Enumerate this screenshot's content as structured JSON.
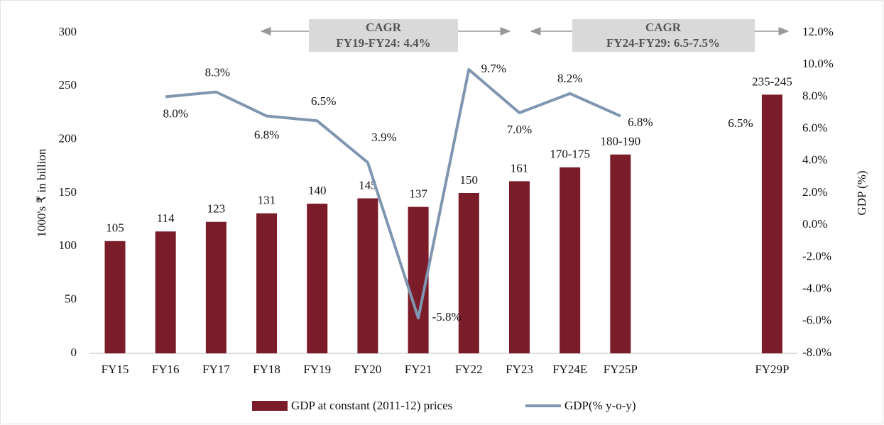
{
  "chart_data": {
    "type": "bar_line",
    "categories": [
      "FY15",
      "FY16",
      "FY17",
      "FY18",
      "FY19",
      "FY20",
      "FY21",
      "FY22",
      "FY23",
      "FY24E",
      "FY25P",
      null,
      null,
      "FY29P"
    ],
    "series": [
      {
        "name": "GDP at constant (2011-12) prices",
        "type": "bar",
        "color": "#7b1c2a",
        "values": [
          105,
          114,
          123,
          131,
          140,
          145,
          137,
          150,
          161,
          174,
          186,
          null,
          null,
          242
        ],
        "value_labels": [
          null,
          null,
          null,
          null,
          null,
          null,
          null,
          null,
          null,
          "170-175",
          "180-190",
          null,
          null,
          "235-245"
        ]
      },
      {
        "name": "GDP(% y-o-y)",
        "type": "line",
        "axis": "y2",
        "color": "#8096b0",
        "values": [
          null,
          8.0,
          8.3,
          6.8,
          6.5,
          3.9,
          -5.8,
          9.7,
          7.0,
          8.2,
          6.8,
          null,
          null,
          null
        ],
        "value_labels": [
          null,
          "8.0%",
          "8.3%",
          "6.8%",
          "6.5%",
          "3.9%",
          "-5.8%",
          "9.7%",
          "7.0%",
          "8.2%",
          "6.8%",
          null,
          null,
          null
        ]
      }
    ],
    "ylabel": "1000's ₹ in billion",
    "y2label": "GDP (%)",
    "ylim": [
      0,
      300
    ],
    "yticks": [
      0,
      50,
      100,
      150,
      200,
      250,
      300
    ],
    "y2lim": [
      -8,
      12
    ],
    "y2ticks": [
      {
        "value": -8,
        "label": "-8.0%"
      },
      {
        "value": -6,
        "label": "-6.0%"
      },
      {
        "value": -4,
        "label": "-4.0%"
      },
      {
        "value": -2,
        "label": "-2.0%"
      },
      {
        "value": 0,
        "label": "0.0%"
      },
      {
        "value": 2,
        "label": "2.0%"
      },
      {
        "value": 4,
        "label": "4.0%"
      },
      {
        "value": 6,
        "label": "6.0%"
      },
      {
        "value": 8,
        "label": "8.0%"
      },
      {
        "value": 10,
        "label": "10.0%"
      },
      {
        "value": 12,
        "label": "12.0%"
      }
    ],
    "annotations": [
      [
        "CAGR",
        "FY19-FY24: 4.4%"
      ],
      [
        "CAGR",
        "FY24-FY29: 6.5-7.5%"
      ],
      "6.5%"
    ],
    "grid": false
  }
}
